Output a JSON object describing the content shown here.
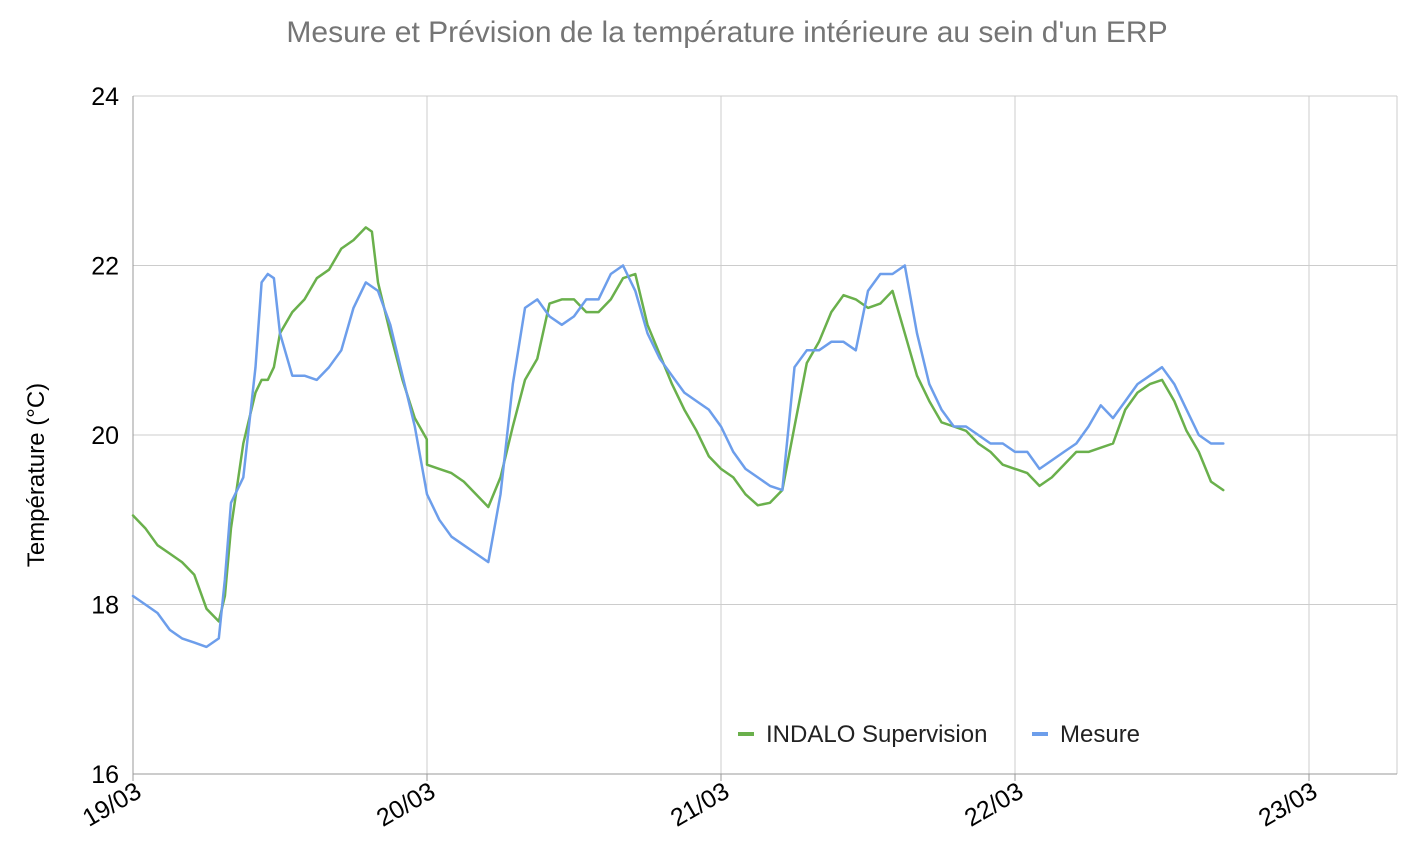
{
  "chart_data": {
    "type": "line",
    "title": "Mesure et Prévision de la température intérieure au sein d'un ERP",
    "xlabel": "",
    "ylabel": "Température (°C)",
    "x_unit": "days",
    "x_ticks": [
      "19/03",
      "20/03",
      "21/03",
      "22/03",
      "23/03"
    ],
    "ylim": [
      16,
      24
    ],
    "y_ticks": [
      "16",
      "18",
      "20",
      "22",
      "24"
    ],
    "grid": true,
    "legend_position": "bottom-right inside plot",
    "series": [
      {
        "name": "INDALO Supervision",
        "color": "#6ab04c",
        "points": [
          [
            "19/03 00:00",
            19.05
          ],
          [
            "19/03 01:00",
            18.9
          ],
          [
            "19/03 02:00",
            18.7
          ],
          [
            "19/03 03:00",
            18.6
          ],
          [
            "19/03 04:00",
            18.5
          ],
          [
            "19/03 05:00",
            18.35
          ],
          [
            "19/03 06:00",
            17.95
          ],
          [
            "19/03 07:00",
            17.8
          ],
          [
            "19/03 07:30",
            18.1
          ],
          [
            "19/03 08:00",
            18.9
          ],
          [
            "19/03 09:00",
            19.9
          ],
          [
            "19/03 10:00",
            20.5
          ],
          [
            "19/03 10:30",
            20.65
          ],
          [
            "19/03 11:00",
            20.65
          ],
          [
            "19/03 11:30",
            20.8
          ],
          [
            "19/03 12:00",
            21.2
          ],
          [
            "19/03 13:00",
            21.45
          ],
          [
            "19/03 14:00",
            21.6
          ],
          [
            "19/03 15:00",
            21.85
          ],
          [
            "19/03 16:00",
            21.95
          ],
          [
            "19/03 17:00",
            22.2
          ],
          [
            "19/03 18:00",
            22.3
          ],
          [
            "19/03 19:00",
            22.45
          ],
          [
            "19/03 19:30",
            22.4
          ],
          [
            "19/03 20:00",
            21.8
          ],
          [
            "19/03 21:00",
            21.2
          ],
          [
            "19/03 22:00",
            20.65
          ],
          [
            "19/03 23:00",
            20.2
          ],
          [
            "19/03 23:59",
            19.95
          ],
          [
            "20/03 00:00",
            19.65
          ],
          [
            "20/03 01:00",
            19.6
          ],
          [
            "20/03 02:00",
            19.55
          ],
          [
            "20/03 03:00",
            19.45
          ],
          [
            "20/03 04:00",
            19.3
          ],
          [
            "20/03 05:00",
            19.15
          ],
          [
            "20/03 06:00",
            19.5
          ],
          [
            "20/03 07:00",
            20.1
          ],
          [
            "20/03 08:00",
            20.65
          ],
          [
            "20/03 09:00",
            20.9
          ],
          [
            "20/03 10:00",
            21.55
          ],
          [
            "20/03 11:00",
            21.6
          ],
          [
            "20/03 12:00",
            21.6
          ],
          [
            "20/03 13:00",
            21.45
          ],
          [
            "20/03 14:00",
            21.45
          ],
          [
            "20/03 15:00",
            21.6
          ],
          [
            "20/03 16:00",
            21.85
          ],
          [
            "20/03 17:00",
            21.9
          ],
          [
            "20/03 18:00",
            21.3
          ],
          [
            "20/03 19:00",
            20.95
          ],
          [
            "20/03 20:00",
            20.6
          ],
          [
            "20/03 21:00",
            20.3
          ],
          [
            "20/03 22:00",
            20.05
          ],
          [
            "20/03 23:00",
            19.75
          ],
          [
            "21/03 00:00",
            19.6
          ],
          [
            "21/03 01:00",
            19.5
          ],
          [
            "21/03 02:00",
            19.3
          ],
          [
            "21/03 03:00",
            19.17
          ],
          [
            "21/03 04:00",
            19.2
          ],
          [
            "21/03 05:00",
            19.35
          ],
          [
            "21/03 06:00",
            20.1
          ],
          [
            "21/03 07:00",
            20.85
          ],
          [
            "21/03 08:00",
            21.1
          ],
          [
            "21/03 09:00",
            21.45
          ],
          [
            "21/03 10:00",
            21.65
          ],
          [
            "21/03 11:00",
            21.6
          ],
          [
            "21/03 12:00",
            21.5
          ],
          [
            "21/03 13:00",
            21.55
          ],
          [
            "21/03 14:00",
            21.7
          ],
          [
            "21/03 15:00",
            21.2
          ],
          [
            "21/03 16:00",
            20.7
          ],
          [
            "21/03 17:00",
            20.4
          ],
          [
            "21/03 18:00",
            20.15
          ],
          [
            "21/03 19:00",
            20.1
          ],
          [
            "21/03 20:00",
            20.05
          ],
          [
            "21/03 21:00",
            19.9
          ],
          [
            "21/03 22:00",
            19.8
          ],
          [
            "21/03 23:00",
            19.65
          ],
          [
            "22/03 00:00",
            19.6
          ],
          [
            "22/03 01:00",
            19.55
          ],
          [
            "22/03 02:00",
            19.4
          ],
          [
            "22/03 03:00",
            19.5
          ],
          [
            "22/03 04:00",
            19.65
          ],
          [
            "22/03 05:00",
            19.8
          ],
          [
            "22/03 06:00",
            19.8
          ],
          [
            "22/03 07:00",
            19.85
          ],
          [
            "22/03 08:00",
            19.9
          ],
          [
            "22/03 09:00",
            20.3
          ],
          [
            "22/03 10:00",
            20.5
          ],
          [
            "22/03 11:00",
            20.6
          ],
          [
            "22/03 12:00",
            20.65
          ],
          [
            "22/03 13:00",
            20.4
          ],
          [
            "22/03 14:00",
            20.05
          ],
          [
            "22/03 15:00",
            19.8
          ],
          [
            "22/03 16:00",
            19.45
          ],
          [
            "22/03 17:00",
            19.35
          ]
        ]
      },
      {
        "name": "Mesure",
        "color": "#6d9eeb",
        "points": [
          [
            "19/03 00:00",
            18.1
          ],
          [
            "19/03 01:00",
            18.0
          ],
          [
            "19/03 02:00",
            17.9
          ],
          [
            "19/03 03:00",
            17.7
          ],
          [
            "19/03 04:00",
            17.6
          ],
          [
            "19/03 05:00",
            17.55
          ],
          [
            "19/03 06:00",
            17.5
          ],
          [
            "19/03 07:00",
            17.6
          ],
          [
            "19/03 07:30",
            18.3
          ],
          [
            "19/03 08:00",
            19.2
          ],
          [
            "19/03 09:00",
            19.5
          ],
          [
            "19/03 10:00",
            20.8
          ],
          [
            "19/03 10:30",
            21.8
          ],
          [
            "19/03 11:00",
            21.9
          ],
          [
            "19/03 11:30",
            21.85
          ],
          [
            "19/03 12:00",
            21.2
          ],
          [
            "19/03 13:00",
            20.7
          ],
          [
            "19/03 14:00",
            20.7
          ],
          [
            "19/03 15:00",
            20.65
          ],
          [
            "19/03 16:00",
            20.8
          ],
          [
            "19/03 17:00",
            21.0
          ],
          [
            "19/03 18:00",
            21.5
          ],
          [
            "19/03 19:00",
            21.8
          ],
          [
            "19/03 20:00",
            21.7
          ],
          [
            "19/03 21:00",
            21.3
          ],
          [
            "19/03 22:00",
            20.7
          ],
          [
            "19/03 23:00",
            20.1
          ],
          [
            "20/03 00:00",
            19.3
          ],
          [
            "20/03 01:00",
            19.0
          ],
          [
            "20/03 02:00",
            18.8
          ],
          [
            "20/03 03:00",
            18.7
          ],
          [
            "20/03 04:00",
            18.6
          ],
          [
            "20/03 05:00",
            18.5
          ],
          [
            "20/03 06:00",
            19.3
          ],
          [
            "20/03 07:00",
            20.6
          ],
          [
            "20/03 08:00",
            21.5
          ],
          [
            "20/03 09:00",
            21.6
          ],
          [
            "20/03 10:00",
            21.4
          ],
          [
            "20/03 11:00",
            21.3
          ],
          [
            "20/03 12:00",
            21.4
          ],
          [
            "20/03 13:00",
            21.6
          ],
          [
            "20/03 14:00",
            21.6
          ],
          [
            "20/03 15:00",
            21.9
          ],
          [
            "20/03 16:00",
            22.0
          ],
          [
            "20/03 17:00",
            21.7
          ],
          [
            "20/03 18:00",
            21.2
          ],
          [
            "20/03 19:00",
            20.9
          ],
          [
            "20/03 20:00",
            20.7
          ],
          [
            "20/03 21:00",
            20.5
          ],
          [
            "20/03 22:00",
            20.4
          ],
          [
            "20/03 23:00",
            20.3
          ],
          [
            "21/03 00:00",
            20.1
          ],
          [
            "21/03 01:00",
            19.8
          ],
          [
            "21/03 02:00",
            19.6
          ],
          [
            "21/03 03:00",
            19.5
          ],
          [
            "21/03 04:00",
            19.4
          ],
          [
            "21/03 05:00",
            19.35
          ],
          [
            "21/03 06:00",
            20.8
          ],
          [
            "21/03 07:00",
            21.0
          ],
          [
            "21/03 08:00",
            21.0
          ],
          [
            "21/03 09:00",
            21.1
          ],
          [
            "21/03 10:00",
            21.1
          ],
          [
            "21/03 11:00",
            21.0
          ],
          [
            "21/03 12:00",
            21.7
          ],
          [
            "21/03 13:00",
            21.9
          ],
          [
            "21/03 14:00",
            21.9
          ],
          [
            "21/03 15:00",
            22.0
          ],
          [
            "21/03 16:00",
            21.2
          ],
          [
            "21/03 17:00",
            20.6
          ],
          [
            "21/03 18:00",
            20.3
          ],
          [
            "21/03 19:00",
            20.1
          ],
          [
            "21/03 20:00",
            20.1
          ],
          [
            "21/03 21:00",
            20.0
          ],
          [
            "21/03 22:00",
            19.9
          ],
          [
            "21/03 23:00",
            19.9
          ],
          [
            "22/03 00:00",
            19.8
          ],
          [
            "22/03 01:00",
            19.8
          ],
          [
            "22/03 02:00",
            19.6
          ],
          [
            "22/03 03:00",
            19.7
          ],
          [
            "22/03 04:00",
            19.8
          ],
          [
            "22/03 05:00",
            19.9
          ],
          [
            "22/03 06:00",
            20.1
          ],
          [
            "22/03 07:00",
            20.35
          ],
          [
            "22/03 08:00",
            20.2
          ],
          [
            "22/03 09:00",
            20.4
          ],
          [
            "22/03 10:00",
            20.6
          ],
          [
            "22/03 11:00",
            20.7
          ],
          [
            "22/03 12:00",
            20.8
          ],
          [
            "22/03 13:00",
            20.6
          ],
          [
            "22/03 14:00",
            20.3
          ],
          [
            "22/03 15:00",
            20.0
          ],
          [
            "22/03 16:00",
            19.9
          ],
          [
            "22/03 17:00",
            19.9
          ]
        ]
      }
    ]
  }
}
